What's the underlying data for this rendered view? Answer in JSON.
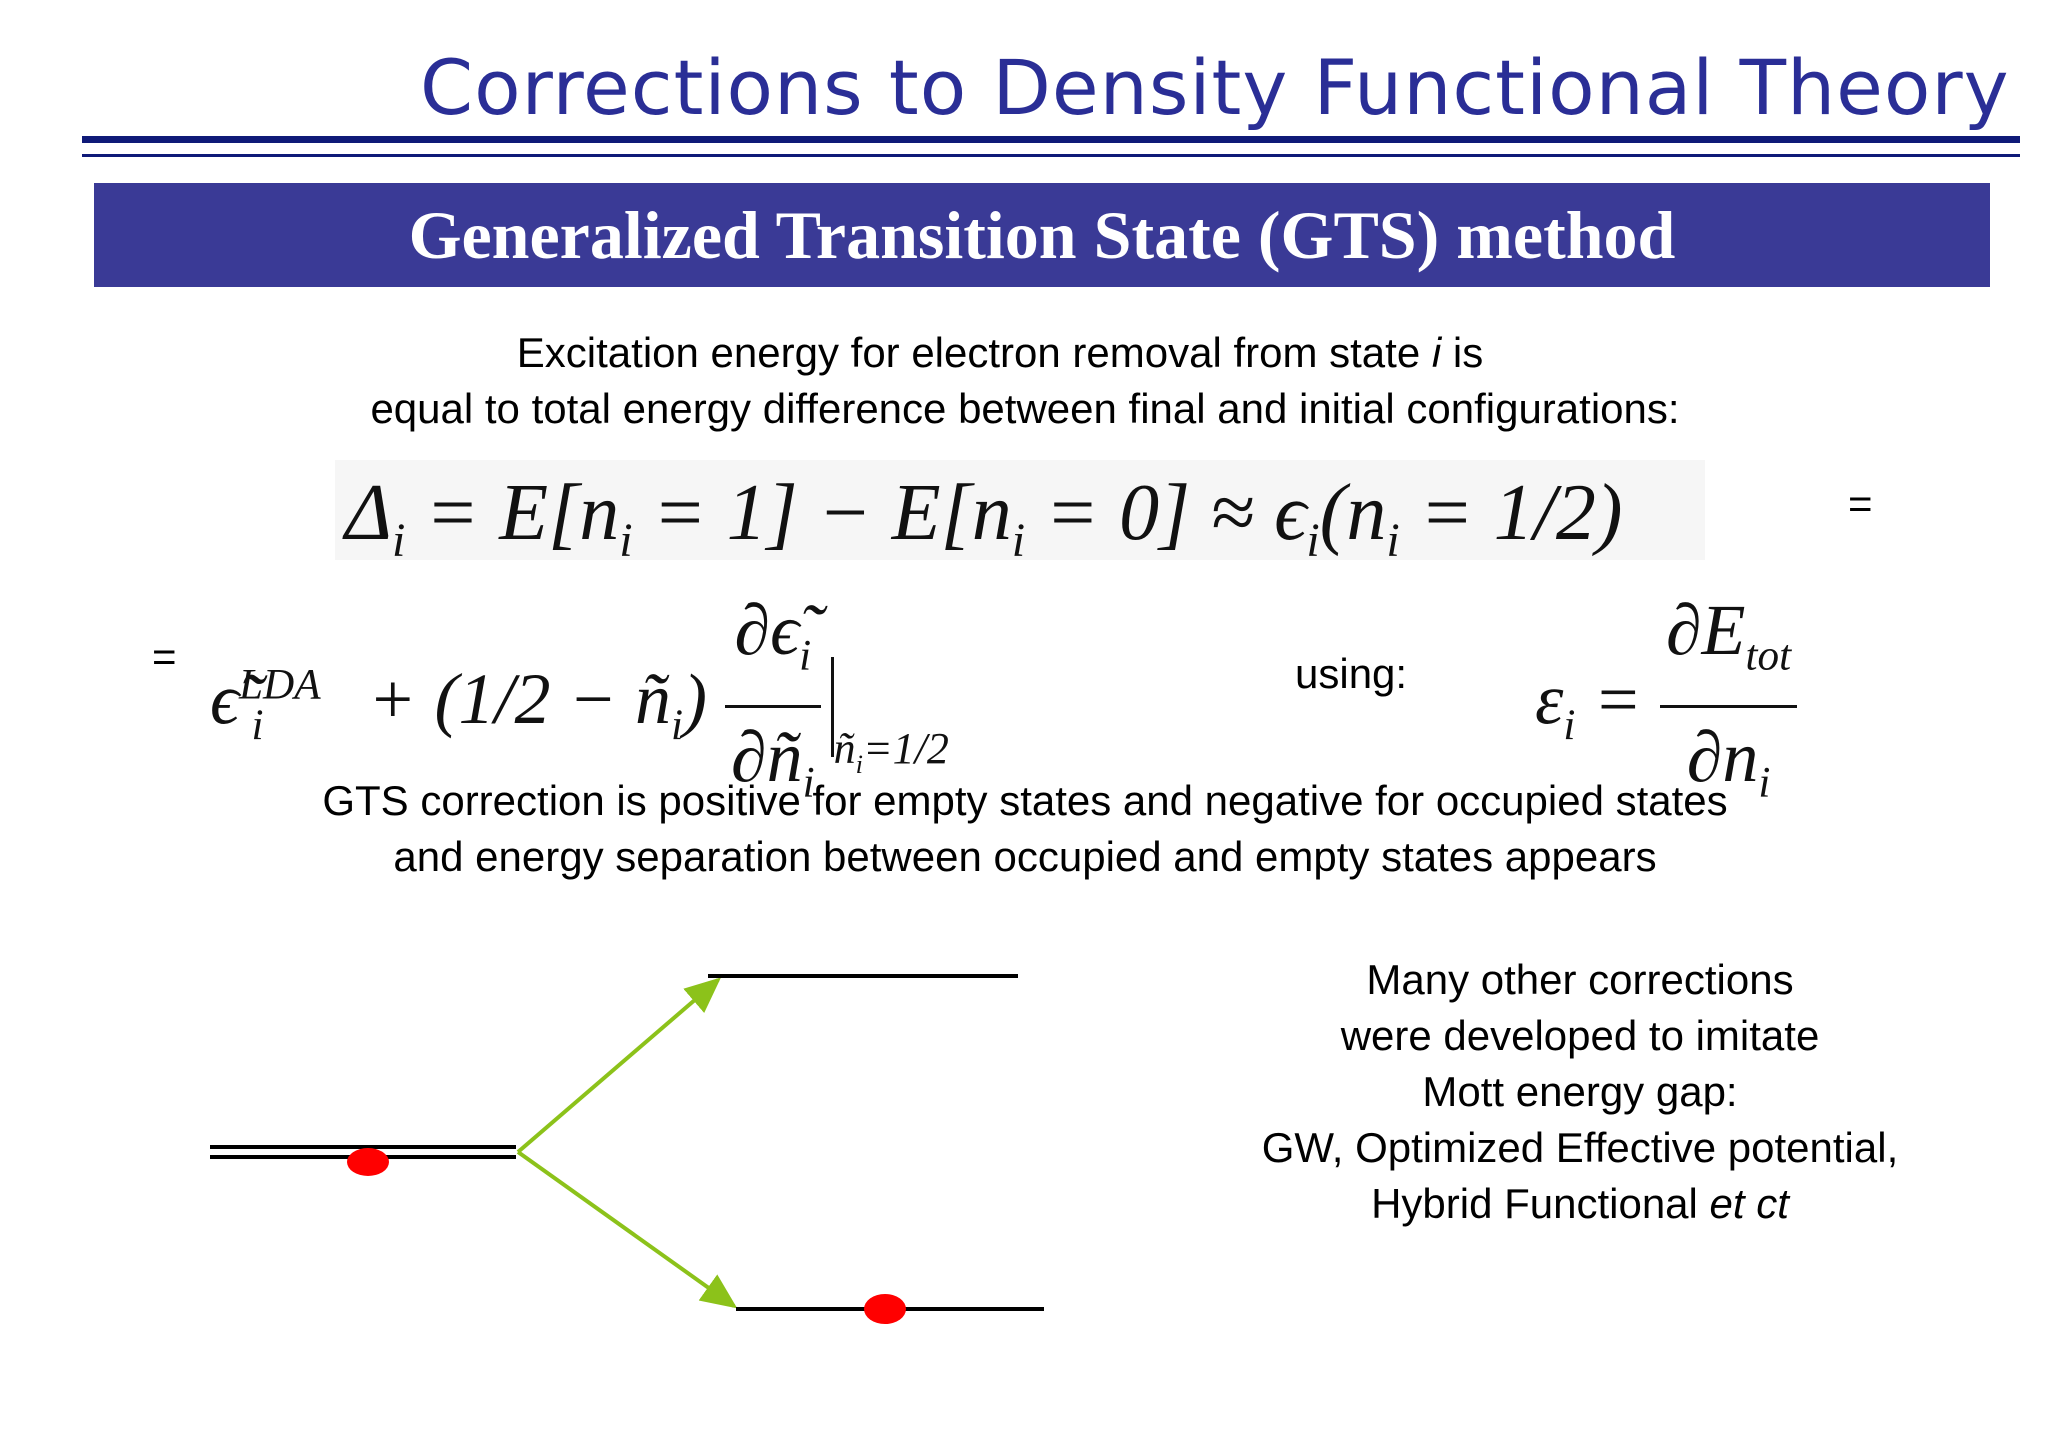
{
  "title": "Corrections to Density Functional Theory",
  "banner": "Generalized Transition State (GTS) method",
  "intro": [
    "Excitation energy for electron removal from state ",
    "i",
    " is",
    "equal to total energy difference between final and initial configurations:"
  ],
  "equation1": {
    "lhs": "Δ",
    "sub_i": "i",
    "body": " = E[n",
    "p1": " = 1] − E[n",
    "p2": " = 0] ≈ ϵ",
    "p3": "(n",
    "p4": " = 1/2)",
    "trailing_eq": "="
  },
  "equation2": {
    "leading_eq": "=",
    "eps_tilde": "ϵ̃",
    "sup_lda": "LDA",
    "sub_i": "i",
    "middle": " + (1/2 − ñ",
    "close": ")",
    "num": "∂ϵ̃",
    "den": "∂ñ",
    "eval": "ñ",
    "eval_val": "=1/2"
  },
  "using_label": "using:",
  "equation3": {
    "lhs": "ε",
    "sub_i": "i",
    "eq": " = ",
    "num": "∂E",
    "num_sub": "tot",
    "den": "∂n",
    "den_sub": "i"
  },
  "gts_text": [
    "GTS correction is positive for empty states and negative for occupied states",
    "and energy separation between occupied and  empty states appears"
  ],
  "many_text": [
    "Many other corrections",
    "were developed to imitate",
    "Mott energy gap:",
    "GW, Optimized Effective potential,",
    "Hybrid Functional ",
    "et ct"
  ],
  "colors": {
    "title": "#2a2e96",
    "banner_bg": "#3a3a96",
    "rule": "#0f1a78",
    "arrow": "#8cc21a",
    "electron": "#ff0000"
  }
}
